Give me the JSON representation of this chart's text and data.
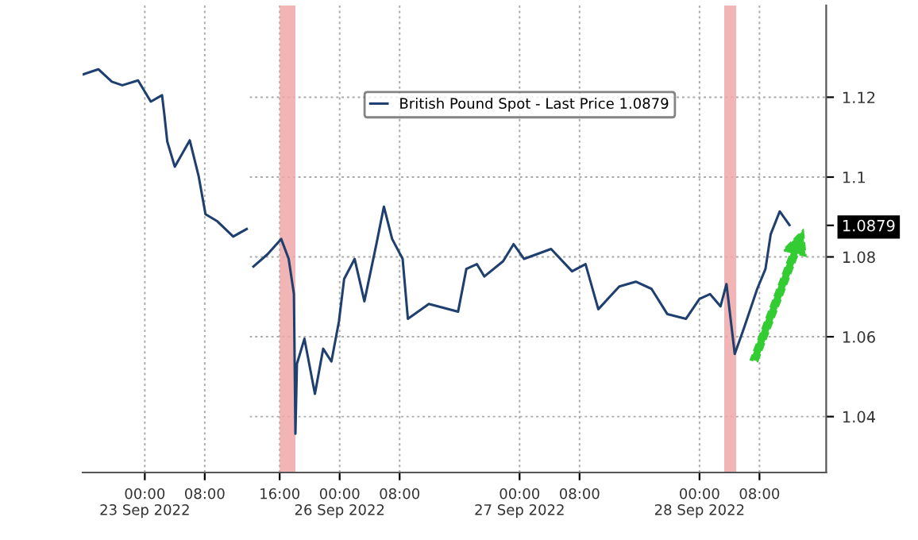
{
  "chart_data": [
    {
      "type": "line",
      "tick_labels": "x",
      "x": [
        "2022-09-22T15:42",
        "2022-09-22T17:48",
        "2022-09-22T19:36",
        "2022-09-22T21:00",
        "2022-09-22T23:06",
        "2022-09-23T00:48",
        "2022-09-23T02:18",
        "2022-09-23T02:36",
        "2022-09-23T03:00",
        "2022-09-23T04:00",
        "2022-09-23T06:00",
        "2022-09-23T07:12",
        "2022-09-23T08:06",
        "2022-09-23T09:42",
        "2022-09-23T11:48",
        "2022-09-23T13:36"
      ],
      "series": [
        {
          "color": "#1f3f6e",
          "values": [
            1.1257,
            1.127,
            1.1239,
            1.123,
            1.1242,
            1.1189,
            1.1205,
            1.1158,
            1.1089,
            1.1026,
            1.1092,
            1.1001,
            1.0907,
            1.0889,
            1.0851,
            1.087
          ]
        }
      ],
      "xlim": [
        "2022-09-22T15:42",
        "2022-09-23T14:00"
      ],
      "xticks": [
        {
          "value": "2022-09-23T00:00",
          "label": "00:00\n23 Sep 2022"
        },
        {
          "value": "2022-09-23T08:00",
          "label": "08:00"
        }
      ],
      "ylim": [
        1.026,
        1.143
      ],
      "grid": true
    },
    {
      "type": "line",
      "x": [
        "2022-09-25T12:30",
        "2022-09-25T14:24",
        "2022-09-25T16:12",
        "2022-09-25T17:12",
        "2022-09-25T17:54",
        "2022-09-25T18:06",
        "2022-09-25T18:18",
        "2022-09-25T19:18",
        "2022-09-25T20:42",
        "2022-09-25T21:48",
        "2022-09-25T22:54",
        "2022-09-25T23:54",
        "2022-09-26T00:36",
        "2022-09-26T02:00",
        "2022-09-26T03:18",
        "2022-09-26T04:54",
        "2022-09-26T05:54",
        "2022-09-26T07:00",
        "2022-09-26T08:24",
        "2022-09-26T09:06",
        "2022-09-26T11:54",
        "2022-09-26T15:48",
        "2022-09-26T16:54",
        "2022-09-26T18:18",
        "2022-09-26T19:18",
        "2022-09-26T21:48",
        "2022-09-26T23:12",
        "2022-09-27T00:36",
        "2022-09-27T04:12",
        "2022-09-27T07:00",
        "2022-09-27T08:48",
        "2022-09-27T10:30",
        "2022-09-27T13:18",
        "2022-09-27T15:30",
        "2022-09-27T17:36",
        "2022-09-27T19:42",
        "2022-09-27T22:12",
        "2022-09-28T00:00",
        "2022-09-28T01:24",
        "2022-09-28T02:48",
        "2022-09-28T03:36",
        "2022-09-28T04:42",
        "2022-09-28T05:54",
        "2022-09-28T07:42",
        "2022-09-28T08:48",
        "2022-09-28T09:30",
        "2022-09-28T10:42",
        "2022-09-28T12:00"
      ],
      "series": [
        {
          "name": "British Pound Spot - Last Price 1.0879",
          "color": "#1f3f6e",
          "values": [
            1.0776,
            1.0807,
            1.0845,
            1.0795,
            1.0707,
            1.0357,
            1.0532,
            1.0595,
            1.0457,
            1.057,
            1.0538,
            1.0638,
            1.0745,
            1.0795,
            1.0689,
            1.0832,
            1.0926,
            1.0845,
            1.0795,
            1.0645,
            1.0682,
            1.0663,
            1.077,
            1.0782,
            1.0751,
            1.0789,
            1.0832,
            1.0795,
            1.082,
            1.0764,
            1.0782,
            1.0669,
            1.0726,
            1.0738,
            1.072,
            1.0657,
            1.0645,
            1.0695,
            1.0707,
            1.0676,
            1.0732,
            1.0557,
            1.062,
            1.072,
            1.077,
            1.0857,
            1.0914,
            1.088
          ]
        }
      ],
      "xlim": [
        "2022-09-25T12:00",
        "2022-09-28T16:54"
      ],
      "xticks": [
        {
          "value": "2022-09-25T16:00",
          "label": "16:00"
        },
        {
          "value": "2022-09-26T00:00",
          "label": "00:00\n26 Sep 2022"
        },
        {
          "value": "2022-09-26T08:00",
          "label": "08:00"
        },
        {
          "value": "2022-09-27T00:00",
          "label": "00:00\n27 Sep 2022"
        },
        {
          "value": "2022-09-27T08:00",
          "label": "08:00"
        },
        {
          "value": "2022-09-28T00:00",
          "label": "00:00\n28 Sep 2022"
        },
        {
          "value": "2022-09-28T08:00",
          "label": "08:00"
        }
      ],
      "ylim": [
        1.026,
        1.143
      ],
      "yticks": [
        1.04,
        1.06,
        1.08,
        1.1,
        1.12,
        {
          "value": 1.0879,
          "label": "1.0879"
        }
      ],
      "grid": true,
      "legend": "top right",
      "bands": [
        {
          "axis": "x",
          "from": "2022-09-25T16:00",
          "to": "2022-09-25T18:06",
          "color": "#f0a8a8"
        },
        {
          "axis": "x",
          "from": "2022-09-28T03:18",
          "to": "2022-09-28T04:54",
          "color": "#f0a8a8"
        }
      ]
    }
  ]
}
